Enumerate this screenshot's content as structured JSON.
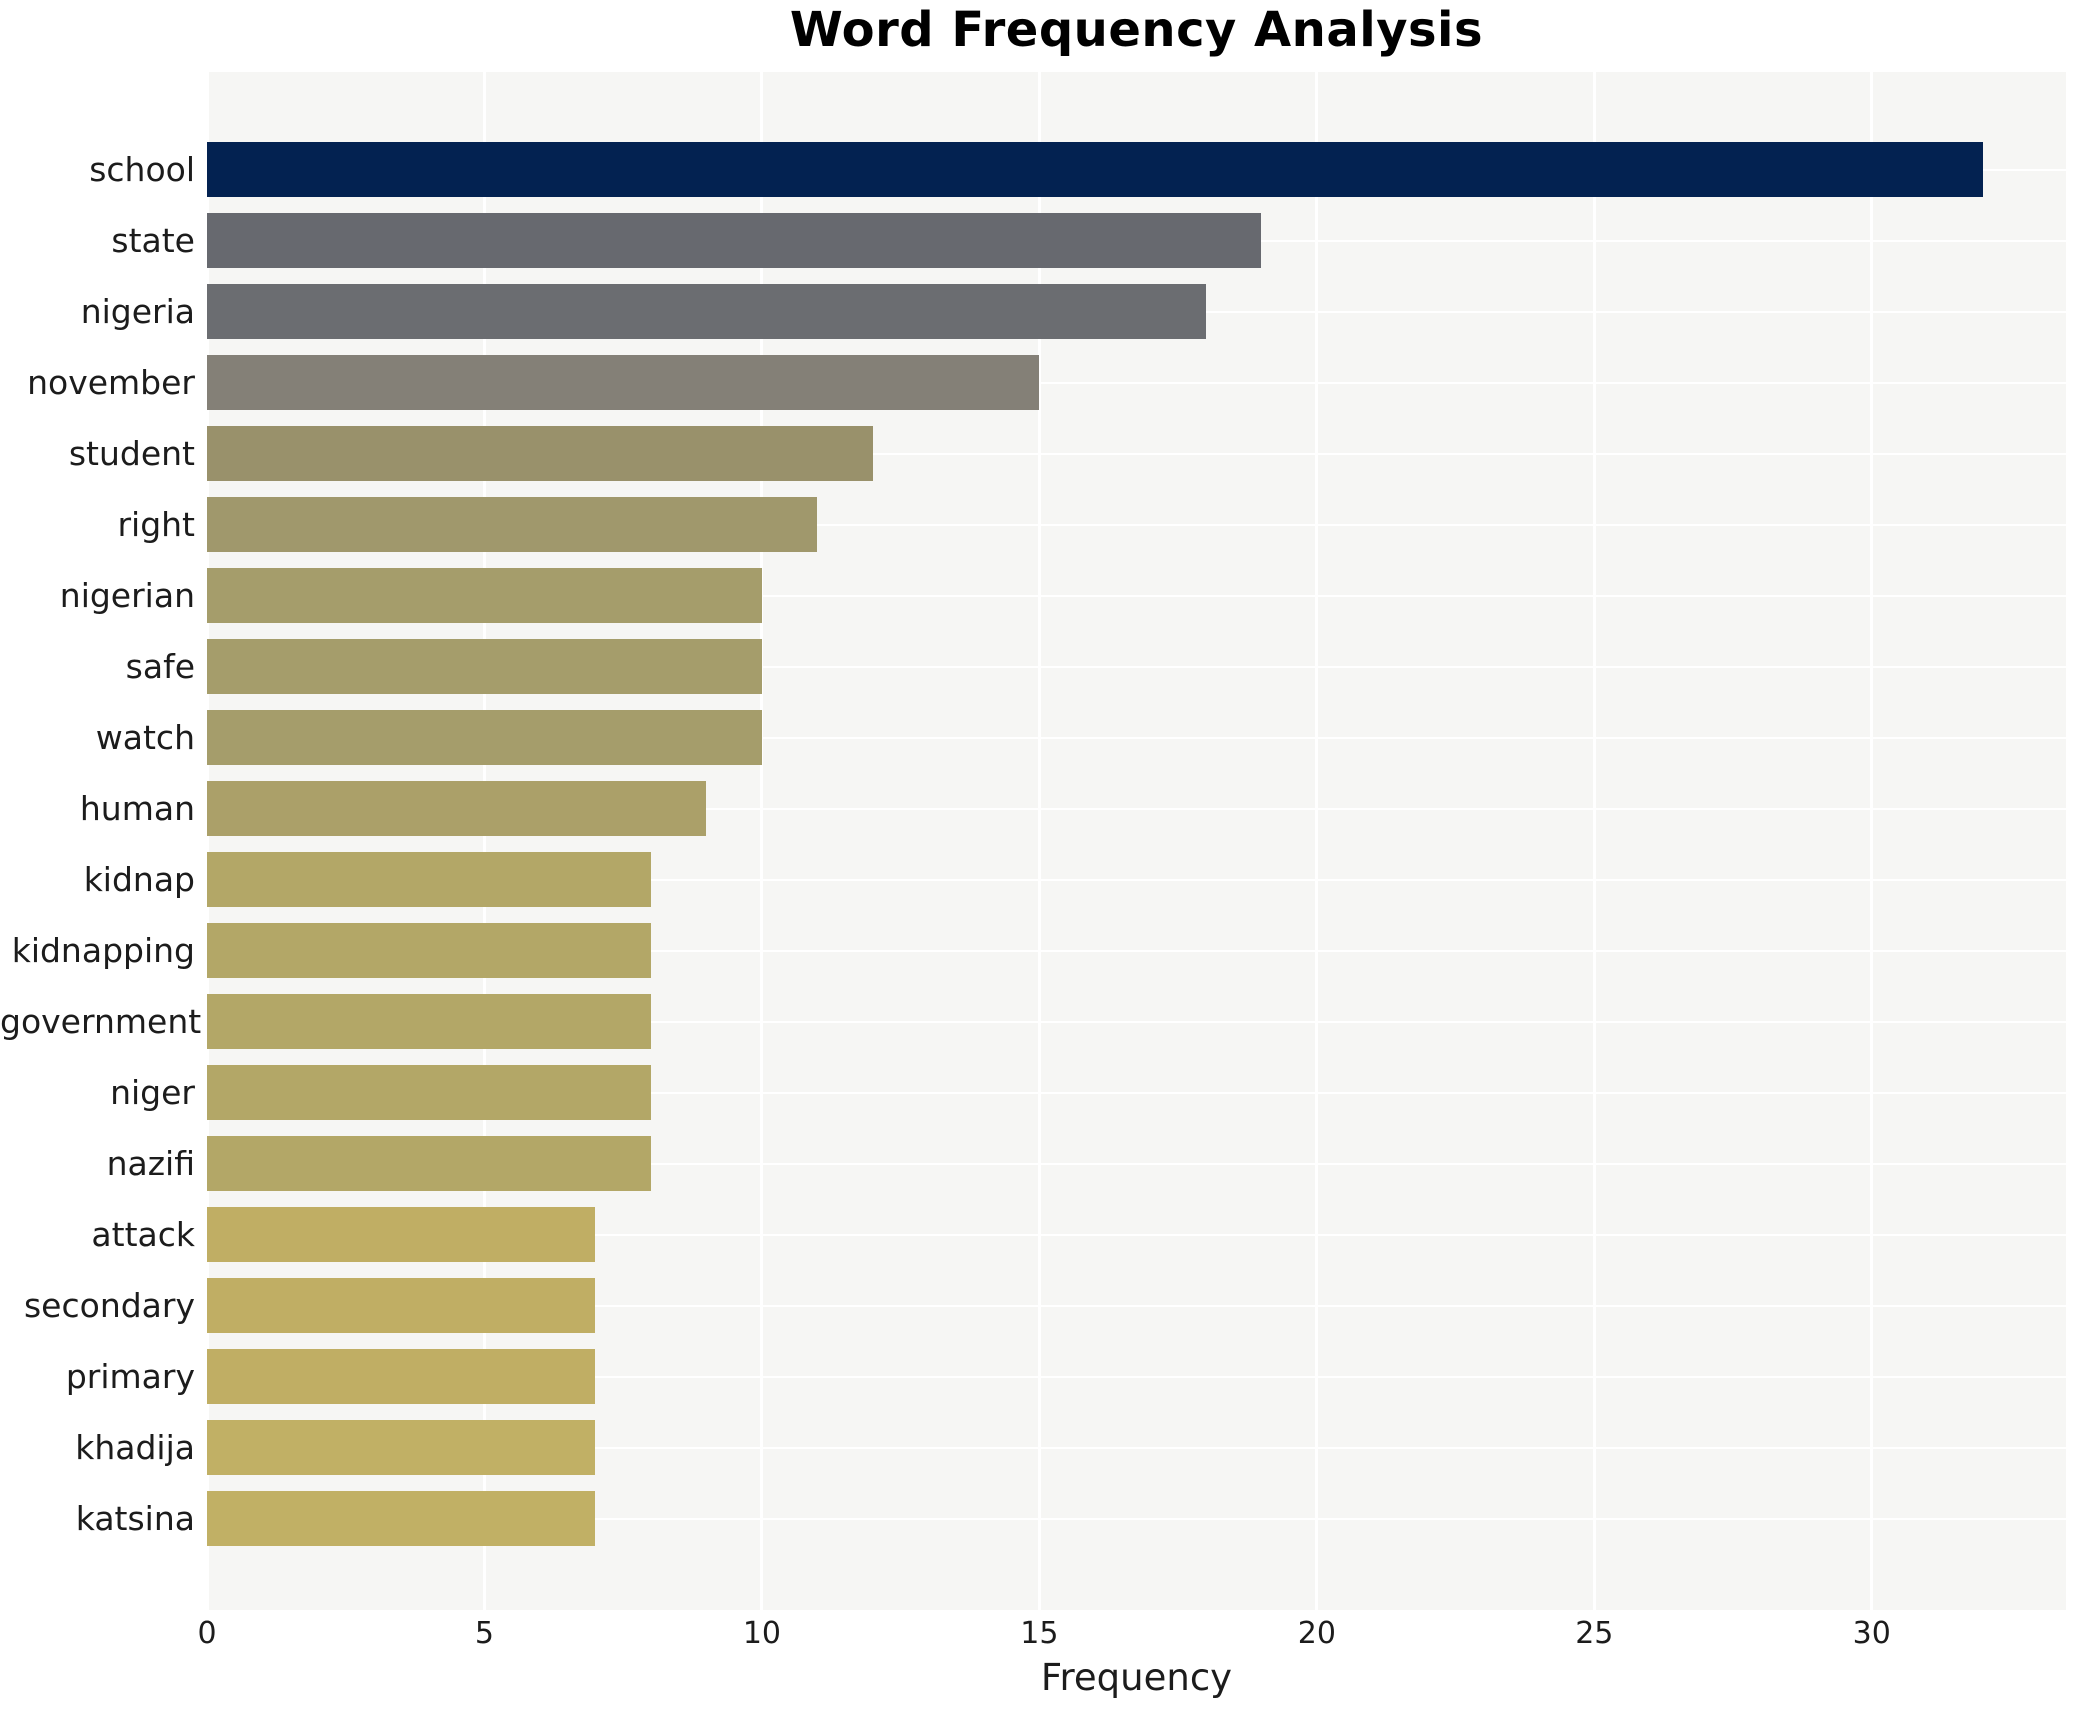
{
  "title": "Word Frequency Analysis",
  "chart_data": {
    "type": "bar",
    "orientation": "horizontal",
    "title": "Word Frequency Analysis",
    "xlabel": "Frequency",
    "ylabel": "",
    "categories": [
      "school",
      "state",
      "nigeria",
      "november",
      "student",
      "right",
      "nigerian",
      "safe",
      "watch",
      "human",
      "kidnap",
      "kidnapping",
      "government",
      "niger",
      "nazifi",
      "attack",
      "secondary",
      "primary",
      "khadija",
      "katsina"
    ],
    "values": [
      32,
      19,
      18,
      15,
      12,
      11,
      10,
      10,
      10,
      9,
      8,
      8,
      8,
      8,
      8,
      7,
      7,
      7,
      7,
      7
    ],
    "bar_colors": [
      "#032251",
      "#67696f",
      "#6b6d71",
      "#848077",
      "#99916b",
      "#a0986c",
      "#a59d6b",
      "#a59d6b",
      "#a59d6b",
      "#aba069",
      "#b3a767",
      "#b3a767",
      "#b3a767",
      "#b3a767",
      "#b3a767",
      "#c0ae64",
      "#c0ae64",
      "#c0ae64",
      "#c1b065",
      "#c1b065"
    ],
    "xlim": [
      0,
      33.5
    ],
    "xticks": [
      0,
      5,
      10,
      15,
      20,
      25,
      30
    ],
    "grid": "on",
    "legend": "none",
    "plot_background": "#f6f6f4",
    "grid_color": "#ffffff",
    "figure_background": "#ffffff"
  }
}
